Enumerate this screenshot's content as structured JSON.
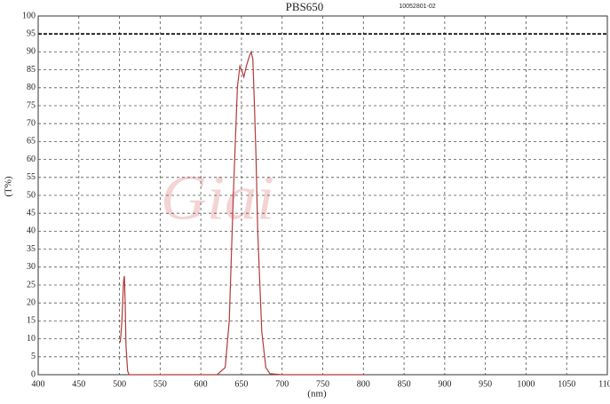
{
  "chart_data": {
    "type": "line",
    "title": "PBS650",
    "subtitle": "10052801-02",
    "x_label": "(nm)",
    "y_label": "(T%)",
    "watermark": "Giai",
    "x": [
      501,
      503,
      505,
      506,
      507,
      508,
      510,
      512,
      520,
      620,
      630,
      635,
      640,
      645,
      648,
      650,
      653,
      656,
      660,
      662,
      664,
      666,
      668,
      670,
      675,
      680,
      685,
      700,
      800
    ],
    "series": [
      {
        "name": "PBS650",
        "color": "#b03a3a",
        "values": [
          9,
          15,
          26,
          27.5,
          20,
          8,
          1,
          0,
          0,
          0,
          2,
          15,
          50,
          80,
          86,
          85,
          83,
          86,
          89,
          90,
          88,
          75,
          60,
          40,
          12,
          2,
          0.3,
          0,
          0
        ]
      }
    ],
    "xlim": [
      400,
      1100
    ],
    "xticks": [
      400,
      450,
      500,
      550,
      600,
      650,
      700,
      750,
      800,
      850,
      900,
      950,
      1000,
      1050,
      1100
    ],
    "ylim": [
      0,
      100
    ],
    "yticks": [
      0,
      5,
      10,
      15,
      20,
      25,
      30,
      35,
      40,
      45,
      50,
      55,
      60,
      65,
      70,
      75,
      80,
      85,
      90,
      95,
      100
    ],
    "reference_line": 95,
    "grid": true
  }
}
